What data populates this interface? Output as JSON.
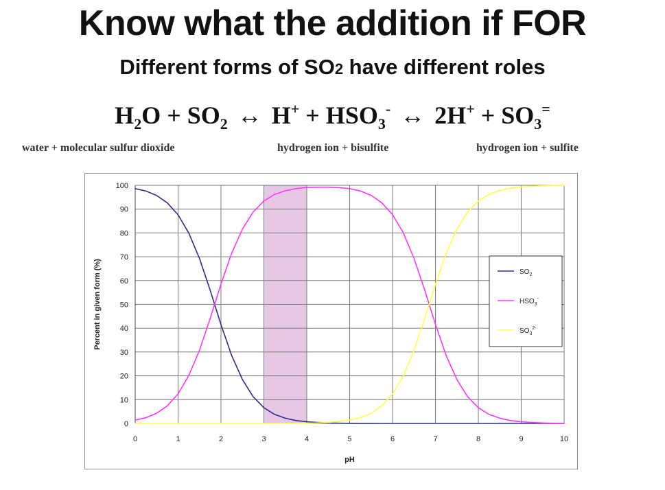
{
  "slide": {
    "title": "Know what the addition if FOR",
    "subtitle": {
      "prefix": "Different forms of SO",
      "sub": "2",
      "suffix": " have different roles"
    },
    "equation": {
      "t1": "H",
      "t1_sub": "2",
      "t2": "O + SO",
      "t2_sub": "2",
      "arrow1": "↔",
      "t3": "H",
      "t3_sup": "+",
      "t4": " + HSO",
      "t4_sub": "3",
      "t4_sup": "-",
      "arrow2": "↔",
      "t5": "2H",
      "t5_sup": "+",
      "t6": " + SO",
      "t6_sub": "3",
      "t6_sup": "="
    },
    "labels": {
      "left": "water + molecular sulfur dioxide",
      "middle": "hydrogen ion + bisulfite",
      "right": "hydrogen ion + sulfite"
    }
  },
  "chart_data": {
    "type": "line",
    "title": "",
    "xlabel": "pH",
    "ylabel": "Percent in given form (%)",
    "xlim": [
      0,
      10
    ],
    "ylim": [
      0,
      100
    ],
    "xticks": [
      "0",
      "1",
      "2",
      "3",
      "4",
      "5",
      "6",
      "7",
      "8",
      "9",
      "10"
    ],
    "yticks": [
      "0",
      "10",
      "20",
      "30",
      "40",
      "50",
      "60",
      "70",
      "80",
      "90",
      "100"
    ],
    "grid": true,
    "highlight_band": {
      "x_from": 3,
      "x_to": 4,
      "color": "#e6c8e6"
    },
    "legend_position": "right",
    "x": [
      0,
      0.25,
      0.5,
      0.75,
      1,
      1.25,
      1.5,
      1.75,
      2,
      2.25,
      2.5,
      2.75,
      3,
      3.25,
      3.5,
      3.75,
      4,
      4.25,
      4.5,
      4.75,
      5,
      5.25,
      5.5,
      5.75,
      6,
      6.25,
      6.5,
      6.75,
      7,
      7.25,
      7.5,
      7.75,
      8,
      8.25,
      8.5,
      8.75,
      9,
      9.25,
      9.5,
      9.75,
      10
    ],
    "series": [
      {
        "name": "SO",
        "name_sub": "2",
        "name_sup": "",
        "color": "#2b2b8c",
        "values": [
          98.6,
          97.6,
          95.7,
          92.6,
          87.6,
          79.9,
          69.2,
          55.8,
          41.5,
          28.5,
          18.4,
          11.2,
          6.6,
          3.8,
          2.2,
          1.2,
          0.7,
          0.4,
          0.2,
          0.1,
          0.07,
          0.04,
          0.02,
          0.01,
          0.01,
          0,
          0,
          0,
          0,
          0,
          0,
          0,
          0,
          0,
          0,
          0,
          0,
          0,
          0,
          0,
          0
        ]
      },
      {
        "name": "HSO",
        "name_sub": "3",
        "name_sup": "-",
        "color": "#ff33ff",
        "values": [
          1.4,
          2.4,
          4.3,
          7.4,
          12.4,
          20.1,
          30.8,
          44.2,
          58.5,
          71.5,
          81.6,
          88.8,
          93.4,
          96.2,
          97.7,
          98.6,
          99.1,
          99.2,
          99.2,
          99.0,
          98.6,
          97.6,
          95.8,
          92.6,
          87.7,
          80.1,
          69.3,
          56.0,
          41.6,
          28.6,
          18.4,
          11.2,
          6.6,
          3.8,
          2.2,
          1.2,
          0.7,
          0.4,
          0.2,
          0.1,
          0.07
        ]
      },
      {
        "name": "SO",
        "name_sub": "3",
        "name_sup": "2-",
        "color": "#ffff44",
        "values": [
          0,
          0,
          0,
          0,
          0,
          0,
          0,
          0,
          0,
          0,
          0,
          0,
          0,
          0,
          0.01,
          0.03,
          0.1,
          0.2,
          0.4,
          0.8,
          1.4,
          2.4,
          4.2,
          7.4,
          12.3,
          19.9,
          30.7,
          44.0,
          58.4,
          71.4,
          81.6,
          88.8,
          93.4,
          96.2,
          97.8,
          98.8,
          99.3,
          99.6,
          99.8,
          99.9,
          99.93
        ]
      }
    ]
  }
}
